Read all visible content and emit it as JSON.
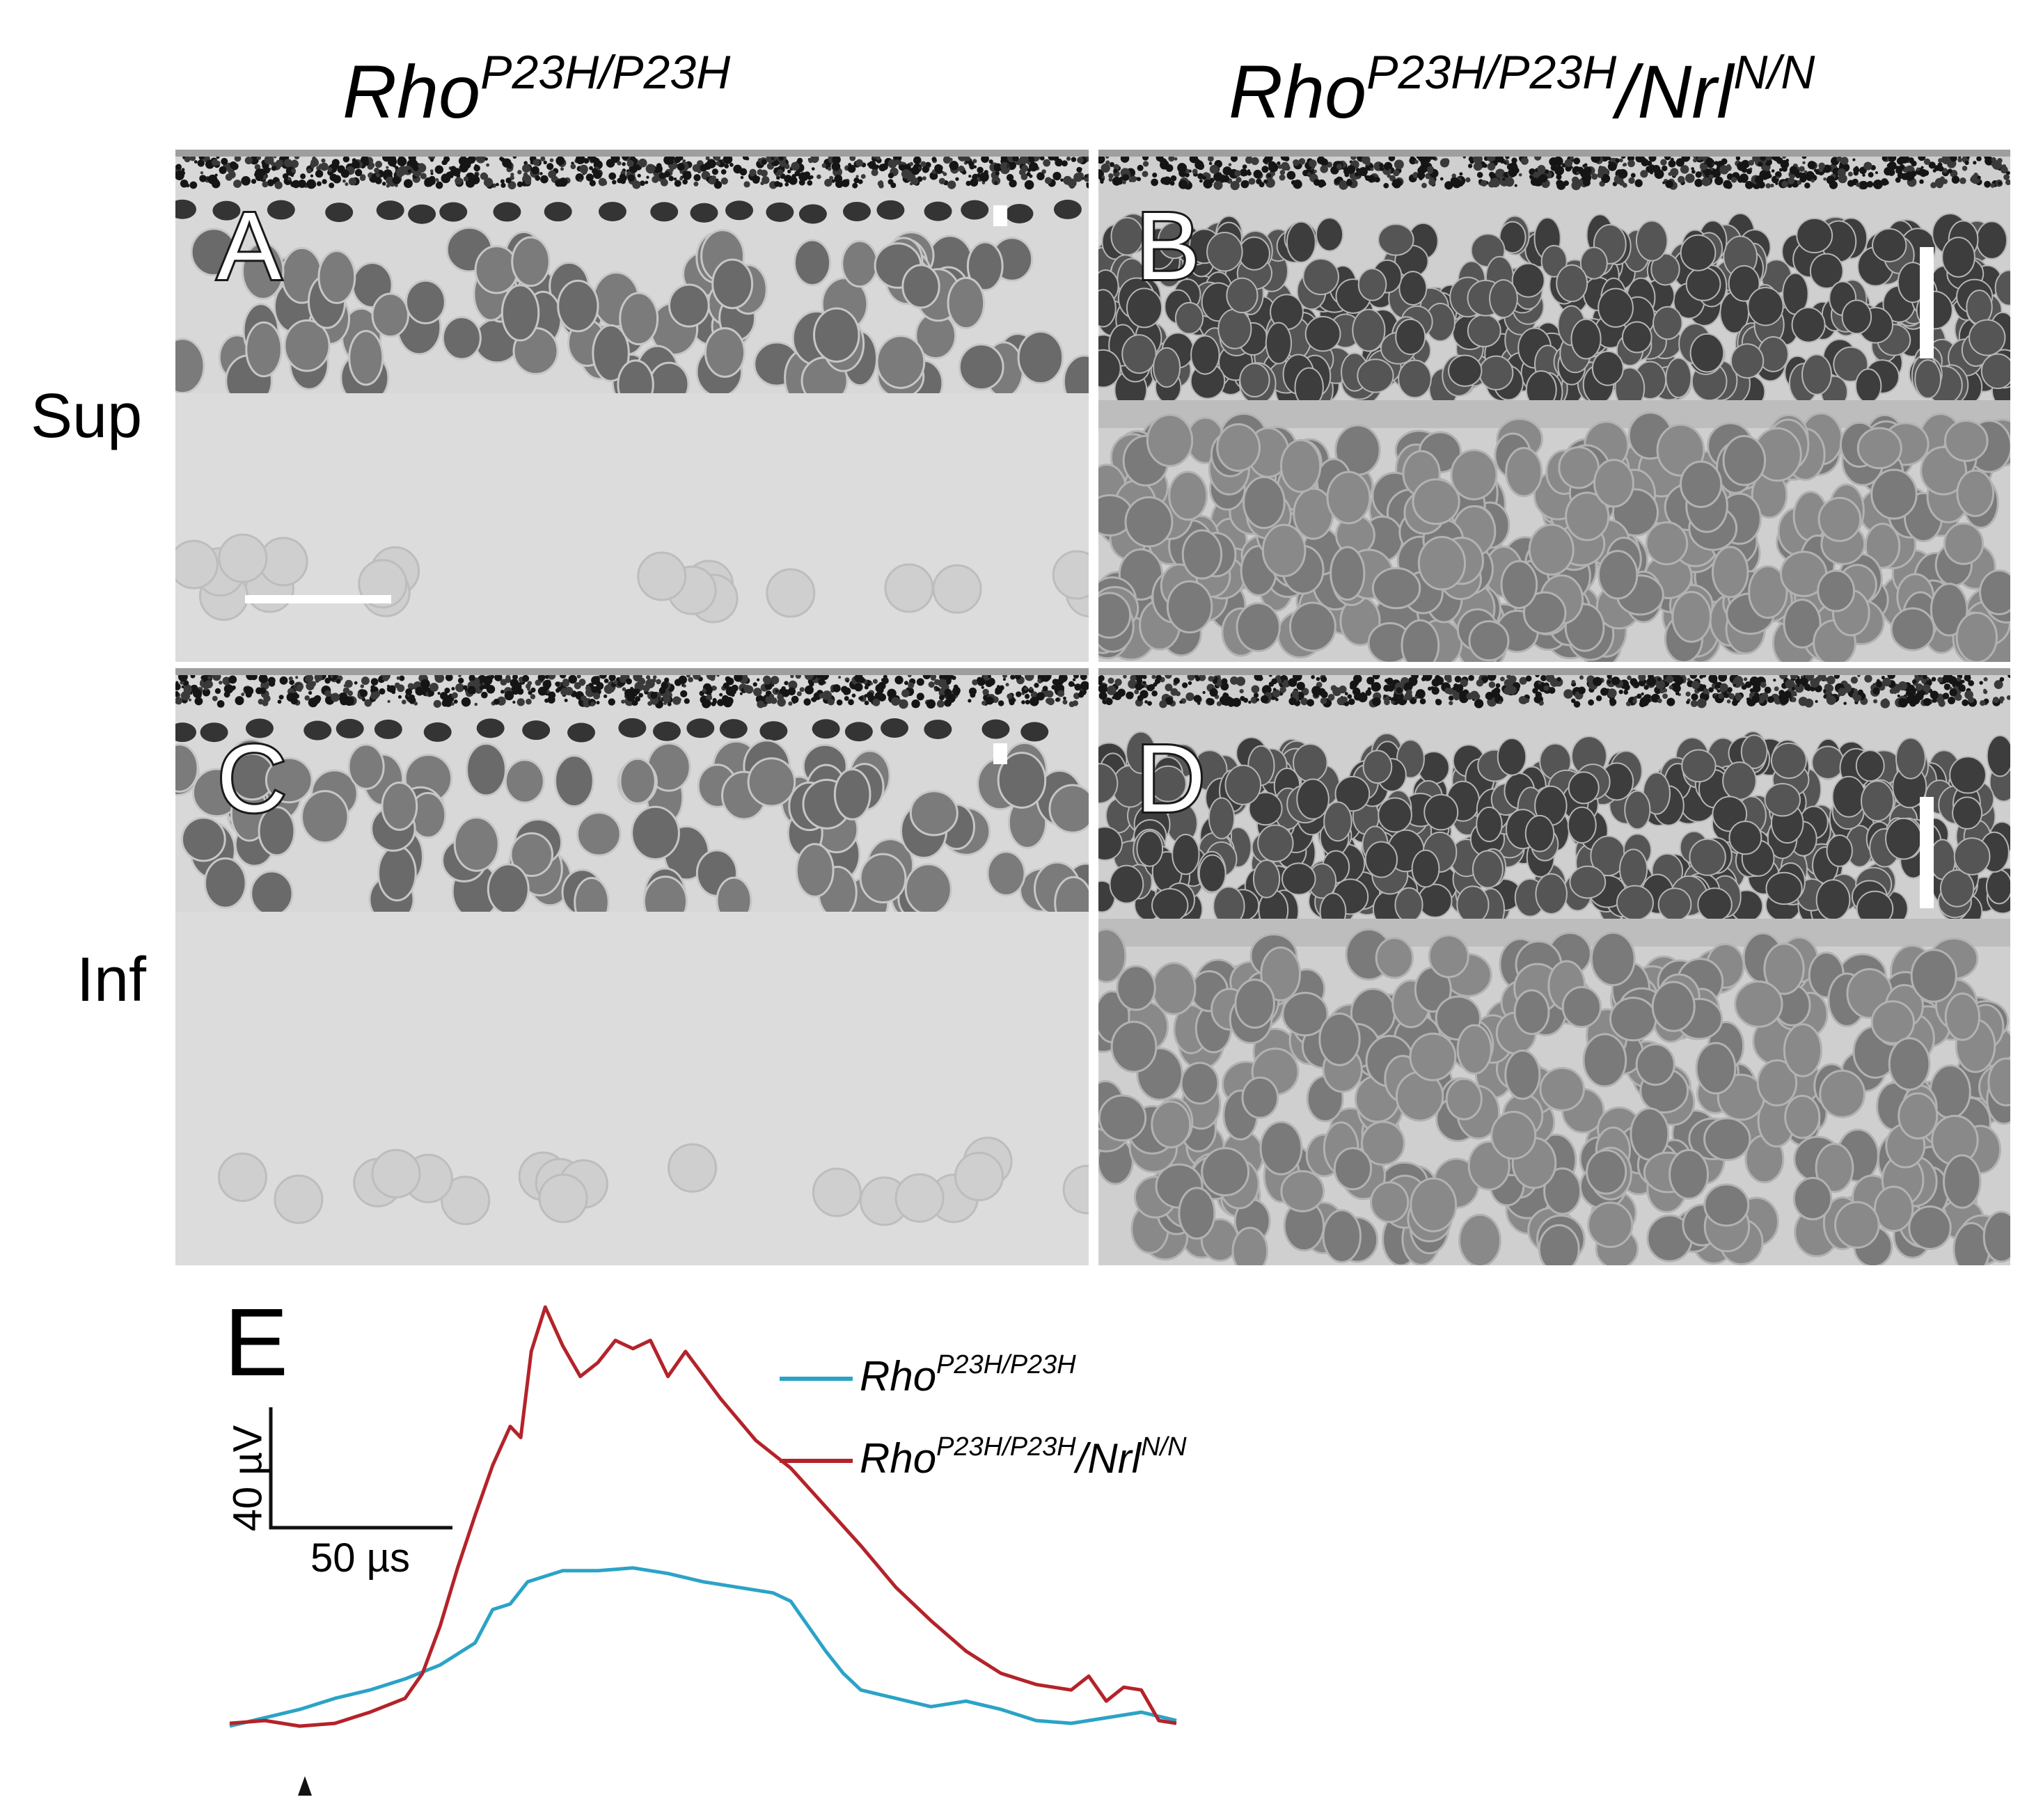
{
  "columns": {
    "left": {
      "base": "Rho",
      "sup": "P23H/P23H",
      "suffix": "",
      "suffix_sup": ""
    },
    "right": {
      "base": "Rho",
      "sup": "P23H/P23H",
      "suffix": "/Nrl",
      "suffix_sup": "N/N"
    }
  },
  "rows": {
    "top": "Sup",
    "bottom": "Inf"
  },
  "panels": [
    {
      "id": "A",
      "label": "A",
      "tone": "rho"
    },
    {
      "id": "B",
      "label": "B",
      "tone": "nrl"
    },
    {
      "id": "C",
      "label": "C",
      "tone": "rho"
    },
    {
      "id": "D",
      "label": "D",
      "tone": "nrl"
    }
  ],
  "chart_label": "E",
  "scale_bar": {
    "y": "40 µV",
    "x": "50 µs"
  },
  "colors": {
    "rho": "#2ba3c6",
    "nrl": "#b4232a"
  },
  "chart_data": {
    "type": "line",
    "xlabel": "",
    "ylabel": "",
    "units": {
      "x": "µs",
      "y": "µV"
    },
    "ylim": [
      -5,
      150
    ],
    "series": [
      {
        "name": "Rho P23H/P23H",
        "color": "#2ba3c6",
        "points": [
          [
            0,
            0
          ],
          [
            10,
            3
          ],
          [
            20,
            6
          ],
          [
            30,
            10
          ],
          [
            40,
            13
          ],
          [
            50,
            17
          ],
          [
            60,
            22
          ],
          [
            70,
            30
          ],
          [
            75,
            42
          ],
          [
            80,
            44
          ],
          [
            85,
            52
          ],
          [
            95,
            56
          ],
          [
            105,
            56
          ],
          [
            115,
            57
          ],
          [
            125,
            55
          ],
          [
            135,
            52
          ],
          [
            145,
            50
          ],
          [
            155,
            48
          ],
          [
            160,
            45
          ],
          [
            165,
            36
          ],
          [
            170,
            27
          ],
          [
            175,
            19
          ],
          [
            180,
            13
          ],
          [
            190,
            10
          ],
          [
            200,
            7
          ],
          [
            210,
            9
          ],
          [
            220,
            6
          ],
          [
            230,
            2
          ],
          [
            240,
            1
          ],
          [
            250,
            3
          ],
          [
            260,
            5
          ],
          [
            270,
            2
          ]
        ]
      },
      {
        "name": "Rho P23H/P23H/Nrl N/N",
        "color": "#b4232a",
        "points": [
          [
            0,
            1
          ],
          [
            10,
            2
          ],
          [
            20,
            0
          ],
          [
            30,
            1
          ],
          [
            40,
            5
          ],
          [
            50,
            10
          ],
          [
            55,
            19
          ],
          [
            60,
            36
          ],
          [
            65,
            57
          ],
          [
            70,
            76
          ],
          [
            75,
            94
          ],
          [
            80,
            108
          ],
          [
            83,
            104
          ],
          [
            86,
            135
          ],
          [
            90,
            151
          ],
          [
            95,
            137
          ],
          [
            100,
            126
          ],
          [
            105,
            131
          ],
          [
            110,
            139
          ],
          [
            115,
            136
          ],
          [
            120,
            139
          ],
          [
            125,
            126
          ],
          [
            130,
            135
          ],
          [
            140,
            118
          ],
          [
            150,
            103
          ],
          [
            160,
            93
          ],
          [
            170,
            79
          ],
          [
            180,
            65
          ],
          [
            190,
            50
          ],
          [
            200,
            38
          ],
          [
            210,
            27
          ],
          [
            220,
            19
          ],
          [
            230,
            15
          ],
          [
            240,
            13
          ],
          [
            245,
            18
          ],
          [
            250,
            9
          ],
          [
            255,
            14
          ],
          [
            260,
            13
          ],
          [
            265,
            2
          ],
          [
            270,
            1
          ]
        ]
      }
    ]
  }
}
